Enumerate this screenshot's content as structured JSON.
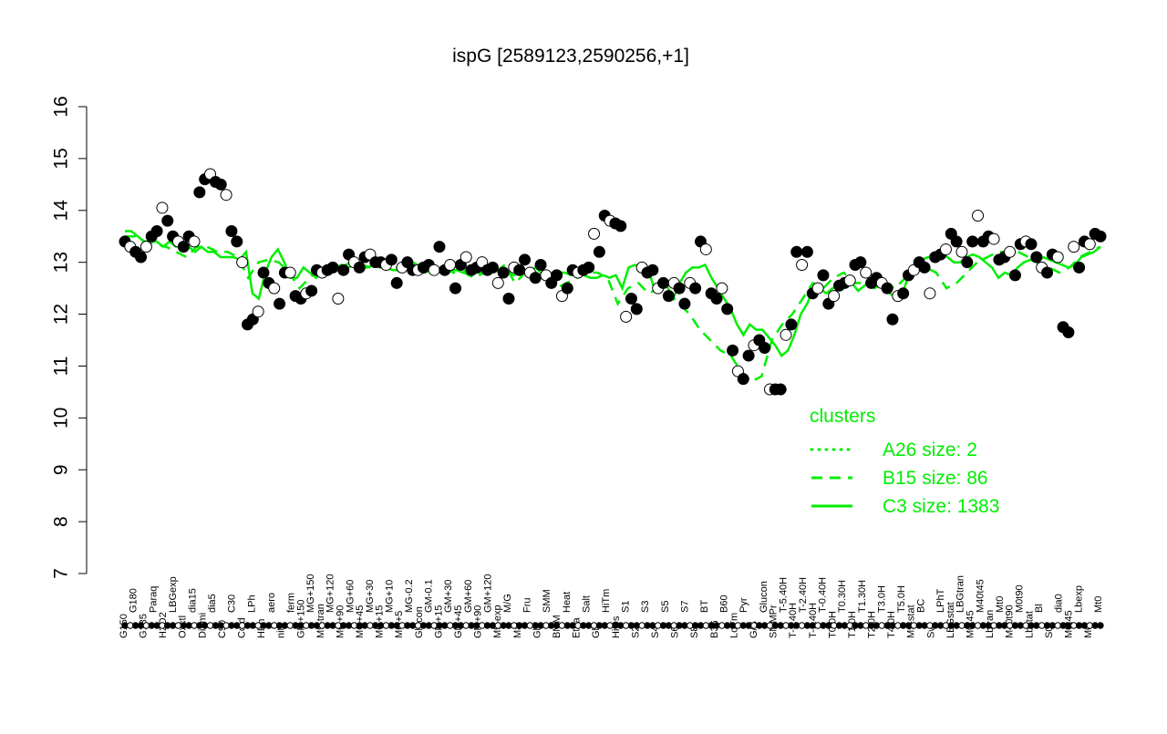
{
  "chart_data": {
    "type": "scatter",
    "title": "ispG [2589123,2590256,+1]",
    "xlabel": "",
    "ylabel": "",
    "ylim": [
      7,
      16
    ],
    "yticks": [
      "7",
      "8",
      "9",
      "10",
      "11",
      "12",
      "13",
      "14",
      "15",
      "16"
    ],
    "grid": false,
    "legend_position": "right",
    "legend": {
      "title": "clusters",
      "entries": [
        {
          "label": "A26 size: 2",
          "style": "dotted"
        },
        {
          "label": "B15 size: 86",
          "style": "dashed"
        },
        {
          "label": "C3 size: 1383",
          "style": "solid"
        }
      ]
    },
    "x_tick_labels": [
      "G150",
      "G180",
      "G135",
      "Paraq",
      "H2O2",
      "LBGexp",
      "Oxctl",
      "dia15",
      "Diami",
      "dia5",
      "C90",
      "C30",
      "Cold",
      "LPh",
      "HPh",
      "aero",
      "nit",
      "ferm",
      "GM+150",
      "MG+150",
      "M9-tran",
      "MG+120",
      "MG+90",
      "MG+60",
      "MG+45",
      "MG+30",
      "MG+15",
      "MG+10",
      "MG+5",
      "MG-0.2",
      "Glucon",
      "GM-0.1",
      "GM+15",
      "GM+30",
      "GM+45",
      "GM+60",
      "GM+90",
      "GM+120",
      "M9-exp",
      "M/G",
      "Mal",
      "Fru",
      "Glu",
      "SMM",
      "BMM",
      "Heat",
      "Etha",
      "Salt",
      "Gly",
      "HiTm",
      "HiOs",
      "S1",
      "S2",
      "S3",
      "S4",
      "S5",
      "S6",
      "S7",
      "S8",
      "BT",
      "B36",
      "B60",
      "LoTm",
      "Pyr",
      "G/S",
      "Glucon",
      "SMMPr",
      "T-5.40H",
      "T-3.40H",
      "T-2.40H",
      "T-1.40H",
      "T-0.40H",
      "T0.0H",
      "T0.30H",
      "T1.0H",
      "T1.30H",
      "T2.0H",
      "T3.0H",
      "T4.0H",
      "T5.0H",
      "M9-stat",
      "BC",
      "Sw",
      "LPhT",
      "LBGstat",
      "LBGtran",
      "M0t45",
      "M40t45",
      "Lbtran",
      "Mt0",
      "M40t90",
      "M0t90",
      "Lbstat",
      "Bl",
      "S0",
      "dia0",
      "M0t45",
      "Lbexp",
      "M0",
      "Mt0"
    ],
    "series": [
      {
        "name": "samples",
        "values": [
          13.4,
          13.3,
          13.2,
          13.1,
          13.3,
          13.5,
          13.6,
          14.05,
          13.8,
          13.5,
          13.4,
          13.3,
          13.5,
          13.4,
          14.35,
          14.6,
          14.7,
          14.55,
          14.5,
          14.3,
          13.6,
          13.4,
          13.0,
          11.8,
          11.9,
          12.05,
          12.8,
          12.6,
          12.5,
          12.2,
          12.8,
          12.8,
          12.35,
          12.3,
          12.4,
          12.45,
          12.85,
          12.8,
          12.85,
          12.9,
          12.3,
          12.85,
          13.15,
          13.0,
          12.9,
          13.1,
          13.15,
          13.0,
          13.0,
          12.95,
          13.05,
          12.6,
          12.9,
          13.0,
          12.85,
          12.85,
          12.9,
          12.95,
          12.85,
          13.3,
          12.85,
          12.95,
          12.5,
          12.95,
          13.1,
          12.85,
          12.9,
          13.0,
          12.85,
          12.9,
          12.6,
          12.8,
          12.3,
          12.9,
          12.85,
          13.05,
          12.8,
          12.7,
          12.95,
          12.75,
          12.6,
          12.75,
          12.35,
          12.5,
          12.85,
          12.8,
          12.85,
          12.9,
          13.55,
          13.2,
          13.9,
          13.8,
          13.75,
          13.7,
          11.95,
          12.3,
          12.1,
          12.9,
          12.8,
          12.85,
          12.5,
          12.6,
          12.35,
          12.6,
          12.5,
          12.2,
          12.6,
          12.5,
          13.4,
          13.25,
          12.4,
          12.3,
          12.5,
          12.1,
          11.3,
          10.9,
          10.75,
          11.2,
          11.4,
          11.5,
          11.35,
          10.55,
          10.55,
          10.55,
          11.6,
          11.8,
          13.2,
          12.95,
          13.2,
          12.4,
          12.5,
          12.75,
          12.2,
          12.35,
          12.55,
          12.6,
          12.65,
          12.95,
          13.0,
          12.8,
          12.6,
          12.7,
          12.6,
          12.5,
          11.9,
          12.35,
          12.4,
          12.75,
          12.85,
          13.0,
          12.9,
          12.4,
          13.1,
          13.15,
          13.25,
          13.55,
          13.4,
          13.2,
          13.0,
          13.4,
          13.9,
          13.4,
          13.5,
          13.45,
          13.05,
          13.1,
          13.2,
          12.75,
          13.35,
          13.4,
          13.35,
          13.1,
          12.9,
          12.8,
          13.15,
          13.1,
          11.75,
          11.65,
          13.3,
          12.9,
          13.4,
          13.35,
          13.55,
          13.5
        ]
      }
    ],
    "cluster_lines": [
      {
        "name": "C3 size: 1383",
        "values": [
          13.6,
          13.6,
          13.5,
          13.4,
          13.4,
          13.4,
          13.3,
          13.4,
          13.3,
          13.35,
          13.3,
          13.2,
          13.3,
          13.2,
          13.2,
          13.1,
          13.1,
          13.1,
          13.05,
          13.2,
          12.4,
          12.3,
          12.8,
          13.1,
          13.25,
          13.0,
          12.7,
          12.7,
          12.9,
          12.8,
          12.7,
          12.85,
          12.8,
          12.9,
          12.95,
          12.9,
          12.95,
          12.9,
          12.9,
          12.95,
          12.9,
          12.9,
          12.85,
          12.85,
          12.85,
          12.9,
          12.8,
          12.8,
          12.85,
          12.9,
          12.8,
          12.85,
          12.85,
          12.8,
          12.9,
          12.8,
          12.8,
          12.8,
          12.9,
          12.8,
          12.8,
          12.75,
          12.8,
          12.8,
          12.85,
          12.75,
          12.7,
          12.7,
          12.8,
          12.8,
          12.75,
          12.8,
          12.75,
          12.7,
          12.7,
          12.75,
          12.7,
          12.75,
          12.5,
          12.9,
          12.95,
          12.9,
          12.9,
          12.5,
          12.5,
          12.55,
          12.3,
          12.6,
          12.8,
          12.9,
          12.9,
          12.95,
          12.7,
          12.5,
          12.3,
          12.1,
          11.8,
          11.6,
          11.8,
          11.7,
          11.7,
          11.55,
          11.4,
          11.2,
          11.3,
          11.6,
          12.0,
          12.2,
          12.5,
          12.5,
          12.4,
          12.5,
          12.55,
          12.6,
          12.6,
          12.45,
          12.55,
          12.65,
          12.6,
          12.5,
          12.4,
          12.3,
          12.4,
          12.8,
          12.9,
          13.05,
          13.1,
          13.1,
          13.2,
          13.1,
          13.0,
          13.0,
          13.1,
          13.15,
          13.1,
          13.0,
          12.9,
          12.7,
          12.8,
          12.75,
          12.9,
          13.0,
          13.05,
          13.0,
          13.1,
          13.05,
          13.0,
          12.95,
          12.9,
          12.95,
          13.1,
          13.15,
          13.2,
          13.3
        ]
      },
      {
        "name": "B15 size: 86",
        "values": [
          13.5,
          13.5,
          13.4,
          13.35,
          13.3,
          13.2,
          13.1,
          13.3,
          13.3,
          13.2,
          13.2,
          13.1,
          12.7,
          13.0,
          13.05,
          13.0,
          12.8,
          12.5,
          12.7,
          12.9,
          12.85,
          12.9,
          13.0,
          12.95,
          12.9,
          12.95,
          12.9,
          12.9,
          13.0,
          12.9,
          12.8,
          12.9,
          12.8,
          12.8,
          12.7,
          12.8,
          12.8,
          12.95,
          12.6,
          12.8,
          12.9,
          12.7,
          12.5,
          12.6,
          12.7,
          12.8,
          12.8,
          12.7,
          12.2,
          12.5,
          12.6,
          12.4,
          12.5,
          12.4,
          12.2,
          12.0,
          11.7,
          11.5,
          11.3,
          11.2,
          10.9,
          10.7,
          10.8,
          11.5,
          11.8,
          12.0,
          12.3,
          12.6,
          12.5,
          12.7,
          12.8,
          12.6,
          12.6,
          12.5,
          12.6,
          12.5,
          12.7,
          12.8,
          12.9,
          12.8,
          12.5,
          12.6,
          12.8,
          13.0,
          13.1,
          13.2,
          13.2,
          13.2,
          13.1,
          13.0,
          12.9,
          12.8,
          12.9,
          13.1,
          13.2,
          13.3
        ]
      }
    ]
  }
}
